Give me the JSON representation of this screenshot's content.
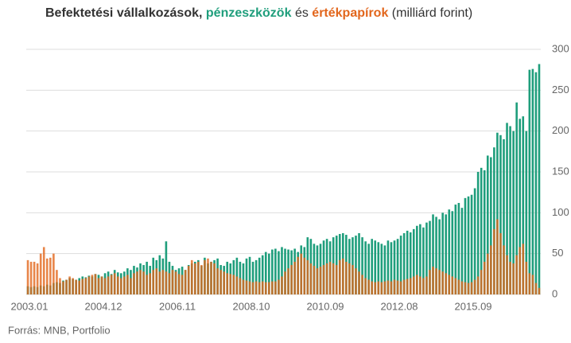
{
  "chart_data": {
    "type": "bar",
    "title": {
      "before": "Befektetési vállalkozások,",
      "between": "és",
      "after": "(milliárd forint)"
    },
    "source": "Forrás: MNB, Portfolio",
    "categories": [
      "2003.01",
      null,
      null,
      null,
      null,
      null,
      null,
      null,
      null,
      null,
      null,
      null,
      null,
      null,
      null,
      null,
      null,
      null,
      null,
      null,
      null,
      null,
      null,
      "2004.12",
      null,
      null,
      null,
      null,
      null,
      null,
      null,
      null,
      null,
      null,
      null,
      null,
      null,
      null,
      null,
      null,
      null,
      null,
      null,
      null,
      null,
      null,
      "2006.11",
      null,
      null,
      null,
      null,
      null,
      null,
      null,
      null,
      null,
      null,
      null,
      null,
      null,
      null,
      null,
      null,
      null,
      null,
      null,
      null,
      null,
      null,
      "2008.10",
      null,
      null,
      null,
      null,
      null,
      null,
      null,
      null,
      null,
      null,
      null,
      null,
      null,
      null,
      null,
      null,
      null,
      null,
      null,
      null,
      null,
      null,
      "2010.09",
      null,
      null,
      null,
      null,
      null,
      null,
      null,
      null,
      null,
      null,
      null,
      null,
      null,
      null,
      null,
      null,
      null,
      null,
      null,
      null,
      null,
      null,
      "2012.08",
      null,
      null,
      null,
      null,
      null,
      null,
      null,
      null,
      null,
      null,
      null,
      null,
      null,
      null,
      null,
      null,
      null,
      null,
      null,
      null,
      null,
      null,
      "2015.09",
      null,
      null,
      null,
      null,
      null,
      null,
      null,
      null,
      null,
      null,
      null,
      null,
      null,
      null,
      null,
      null,
      null,
      null,
      null,
      null,
      null
    ],
    "series": [
      {
        "name": "pénzeszközök",
        "color": "#1f9e7c",
        "values": [
          10,
          9,
          10,
          9,
          11,
          10,
          12,
          11,
          14,
          15,
          14,
          17,
          18,
          20,
          19,
          18,
          20,
          22,
          21,
          23,
          22,
          25,
          24,
          22,
          26,
          28,
          25,
          30,
          27,
          26,
          28,
          32,
          30,
          35,
          33,
          38,
          36,
          40,
          35,
          45,
          42,
          48,
          44,
          65,
          40,
          35,
          30,
          32,
          34,
          30,
          36,
          38,
          40,
          42,
          35,
          45,
          38,
          40,
          42,
          44,
          36,
          35,
          40,
          38,
          42,
          45,
          40,
          38,
          44,
          46,
          40,
          42,
          45,
          48,
          52,
          50,
          55,
          56,
          53,
          58,
          56,
          55,
          54,
          56,
          52,
          60,
          58,
          70,
          68,
          62,
          60,
          62,
          66,
          68,
          65,
          70,
          72,
          74,
          75,
          73,
          68,
          70,
          72,
          75,
          70,
          65,
          62,
          68,
          66,
          64,
          62,
          60,
          66,
          64,
          66,
          68,
          72,
          75,
          78,
          76,
          80,
          84,
          86,
          82,
          88,
          90,
          98,
          95,
          92,
          100,
          98,
          104,
          102,
          110,
          112,
          106,
          118,
          120,
          122,
          130,
          150,
          155,
          152,
          170,
          168,
          180,
          198,
          195,
          190,
          210,
          206,
          200,
          235,
          215,
          218,
          200,
          275,
          276,
          272,
          282
        ]
      },
      {
        "name": "értékpapírok",
        "color": "#e2661c",
        "values": [
          42,
          40,
          40,
          38,
          50,
          58,
          44,
          45,
          50,
          30,
          20,
          16,
          18,
          22,
          20,
          18,
          17,
          19,
          20,
          22,
          24,
          25,
          20,
          22,
          20,
          22,
          24,
          26,
          22,
          20,
          22,
          24,
          20,
          26,
          28,
          30,
          28,
          24,
          26,
          30,
          32,
          28,
          30,
          28,
          26,
          30,
          28,
          25,
          24,
          30,
          35,
          42,
          38,
          40,
          36,
          42,
          44,
          40,
          38,
          32,
          30,
          28,
          26,
          25,
          24,
          22,
          20,
          18,
          17,
          16,
          15,
          16,
          15,
          16,
          15,
          15,
          16,
          16,
          18,
          22,
          28,
          32,
          36,
          40,
          46,
          50,
          45,
          42,
          38,
          35,
          32,
          34,
          36,
          38,
          40,
          38,
          36,
          42,
          44,
          40,
          38,
          36,
          32,
          28,
          24,
          20,
          18,
          16,
          15,
          16,
          15,
          16,
          17,
          16,
          18,
          17,
          16,
          18,
          19,
          20,
          22,
          24,
          22,
          20,
          22,
          30,
          34,
          32,
          30,
          28,
          26,
          24,
          22,
          20,
          18,
          16,
          15,
          14,
          15,
          18,
          22,
          30,
          40,
          50,
          60,
          80,
          92,
          75,
          60,
          48,
          40,
          38,
          48,
          58,
          62,
          40,
          26,
          24,
          14,
          8
        ]
      }
    ],
    "ylim": [
      0,
      300
    ],
    "yticks": [
      0,
      50,
      100,
      150,
      200,
      250,
      300
    ],
    "grid": true
  }
}
